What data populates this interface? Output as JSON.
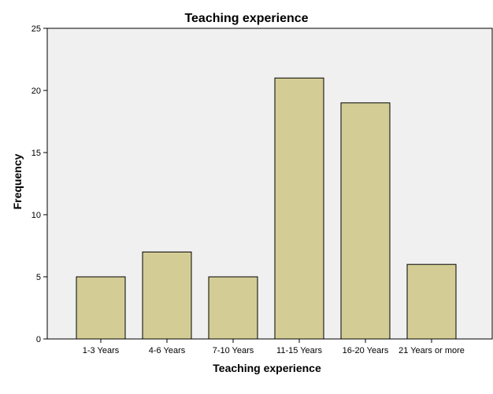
{
  "chart_data": {
    "type": "bar",
    "title": "Teaching experience",
    "xlabel": "Teaching experience",
    "ylabel": "Frequency",
    "categories": [
      "1-3 Years",
      "4-6 Years",
      "7-10 Years",
      "11-15 Years",
      "16-20 Years",
      "21 Years or more"
    ],
    "values": [
      5,
      7,
      5,
      21,
      19,
      6
    ],
    "ylim": [
      0,
      25
    ],
    "yticks": [
      0,
      5,
      10,
      15,
      20,
      25
    ],
    "grid": false,
    "legend": "none",
    "colors": {
      "bar_fill": "#d3cd95",
      "bar_stroke": "#000000",
      "plot_background": "#f0f0f0",
      "page_background": "#ffffff"
    }
  }
}
